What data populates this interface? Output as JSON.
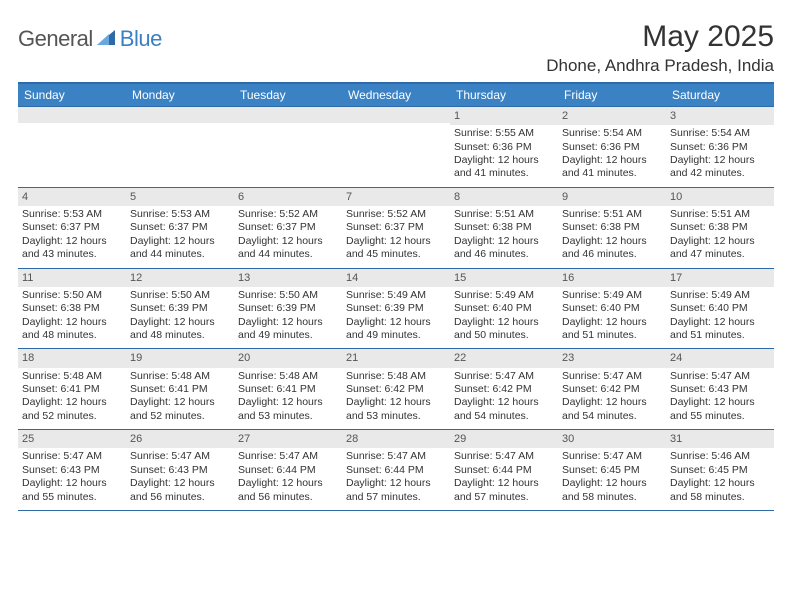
{
  "logo": {
    "left": "General",
    "right": "Blue"
  },
  "title": "May 2025",
  "location": "Dhone, Andhra Pradesh, India",
  "colors": {
    "header_bar": "#3b82c4",
    "rule": "#2f6aa8",
    "day_band": "#e9e9e9",
    "logo_blue": "#3b7fc4",
    "text": "#333333"
  },
  "days_of_week": [
    "Sunday",
    "Monday",
    "Tuesday",
    "Wednesday",
    "Thursday",
    "Friday",
    "Saturday"
  ],
  "weeks": [
    [
      {
        "n": "",
        "sr": "",
        "ss": "",
        "dl": ""
      },
      {
        "n": "",
        "sr": "",
        "ss": "",
        "dl": ""
      },
      {
        "n": "",
        "sr": "",
        "ss": "",
        "dl": ""
      },
      {
        "n": "",
        "sr": "",
        "ss": "",
        "dl": ""
      },
      {
        "n": "1",
        "sr": "Sunrise: 5:55 AM",
        "ss": "Sunset: 6:36 PM",
        "dl": "Daylight: 12 hours and 41 minutes."
      },
      {
        "n": "2",
        "sr": "Sunrise: 5:54 AM",
        "ss": "Sunset: 6:36 PM",
        "dl": "Daylight: 12 hours and 41 minutes."
      },
      {
        "n": "3",
        "sr": "Sunrise: 5:54 AM",
        "ss": "Sunset: 6:36 PM",
        "dl": "Daylight: 12 hours and 42 minutes."
      }
    ],
    [
      {
        "n": "4",
        "sr": "Sunrise: 5:53 AM",
        "ss": "Sunset: 6:37 PM",
        "dl": "Daylight: 12 hours and 43 minutes."
      },
      {
        "n": "5",
        "sr": "Sunrise: 5:53 AM",
        "ss": "Sunset: 6:37 PM",
        "dl": "Daylight: 12 hours and 44 minutes."
      },
      {
        "n": "6",
        "sr": "Sunrise: 5:52 AM",
        "ss": "Sunset: 6:37 PM",
        "dl": "Daylight: 12 hours and 44 minutes."
      },
      {
        "n": "7",
        "sr": "Sunrise: 5:52 AM",
        "ss": "Sunset: 6:37 PM",
        "dl": "Daylight: 12 hours and 45 minutes."
      },
      {
        "n": "8",
        "sr": "Sunrise: 5:51 AM",
        "ss": "Sunset: 6:38 PM",
        "dl": "Daylight: 12 hours and 46 minutes."
      },
      {
        "n": "9",
        "sr": "Sunrise: 5:51 AM",
        "ss": "Sunset: 6:38 PM",
        "dl": "Daylight: 12 hours and 46 minutes."
      },
      {
        "n": "10",
        "sr": "Sunrise: 5:51 AM",
        "ss": "Sunset: 6:38 PM",
        "dl": "Daylight: 12 hours and 47 minutes."
      }
    ],
    [
      {
        "n": "11",
        "sr": "Sunrise: 5:50 AM",
        "ss": "Sunset: 6:38 PM",
        "dl": "Daylight: 12 hours and 48 minutes."
      },
      {
        "n": "12",
        "sr": "Sunrise: 5:50 AM",
        "ss": "Sunset: 6:39 PM",
        "dl": "Daylight: 12 hours and 48 minutes."
      },
      {
        "n": "13",
        "sr": "Sunrise: 5:50 AM",
        "ss": "Sunset: 6:39 PM",
        "dl": "Daylight: 12 hours and 49 minutes."
      },
      {
        "n": "14",
        "sr": "Sunrise: 5:49 AM",
        "ss": "Sunset: 6:39 PM",
        "dl": "Daylight: 12 hours and 49 minutes."
      },
      {
        "n": "15",
        "sr": "Sunrise: 5:49 AM",
        "ss": "Sunset: 6:40 PM",
        "dl": "Daylight: 12 hours and 50 minutes."
      },
      {
        "n": "16",
        "sr": "Sunrise: 5:49 AM",
        "ss": "Sunset: 6:40 PM",
        "dl": "Daylight: 12 hours and 51 minutes."
      },
      {
        "n": "17",
        "sr": "Sunrise: 5:49 AM",
        "ss": "Sunset: 6:40 PM",
        "dl": "Daylight: 12 hours and 51 minutes."
      }
    ],
    [
      {
        "n": "18",
        "sr": "Sunrise: 5:48 AM",
        "ss": "Sunset: 6:41 PM",
        "dl": "Daylight: 12 hours and 52 minutes."
      },
      {
        "n": "19",
        "sr": "Sunrise: 5:48 AM",
        "ss": "Sunset: 6:41 PM",
        "dl": "Daylight: 12 hours and 52 minutes."
      },
      {
        "n": "20",
        "sr": "Sunrise: 5:48 AM",
        "ss": "Sunset: 6:41 PM",
        "dl": "Daylight: 12 hours and 53 minutes."
      },
      {
        "n": "21",
        "sr": "Sunrise: 5:48 AM",
        "ss": "Sunset: 6:42 PM",
        "dl": "Daylight: 12 hours and 53 minutes."
      },
      {
        "n": "22",
        "sr": "Sunrise: 5:47 AM",
        "ss": "Sunset: 6:42 PM",
        "dl": "Daylight: 12 hours and 54 minutes."
      },
      {
        "n": "23",
        "sr": "Sunrise: 5:47 AM",
        "ss": "Sunset: 6:42 PM",
        "dl": "Daylight: 12 hours and 54 minutes."
      },
      {
        "n": "24",
        "sr": "Sunrise: 5:47 AM",
        "ss": "Sunset: 6:43 PM",
        "dl": "Daylight: 12 hours and 55 minutes."
      }
    ],
    [
      {
        "n": "25",
        "sr": "Sunrise: 5:47 AM",
        "ss": "Sunset: 6:43 PM",
        "dl": "Daylight: 12 hours and 55 minutes."
      },
      {
        "n": "26",
        "sr": "Sunrise: 5:47 AM",
        "ss": "Sunset: 6:43 PM",
        "dl": "Daylight: 12 hours and 56 minutes."
      },
      {
        "n": "27",
        "sr": "Sunrise: 5:47 AM",
        "ss": "Sunset: 6:44 PM",
        "dl": "Daylight: 12 hours and 56 minutes."
      },
      {
        "n": "28",
        "sr": "Sunrise: 5:47 AM",
        "ss": "Sunset: 6:44 PM",
        "dl": "Daylight: 12 hours and 57 minutes."
      },
      {
        "n": "29",
        "sr": "Sunrise: 5:47 AM",
        "ss": "Sunset: 6:44 PM",
        "dl": "Daylight: 12 hours and 57 minutes."
      },
      {
        "n": "30",
        "sr": "Sunrise: 5:47 AM",
        "ss": "Sunset: 6:45 PM",
        "dl": "Daylight: 12 hours and 58 minutes."
      },
      {
        "n": "31",
        "sr": "Sunrise: 5:46 AM",
        "ss": "Sunset: 6:45 PM",
        "dl": "Daylight: 12 hours and 58 minutes."
      }
    ]
  ]
}
